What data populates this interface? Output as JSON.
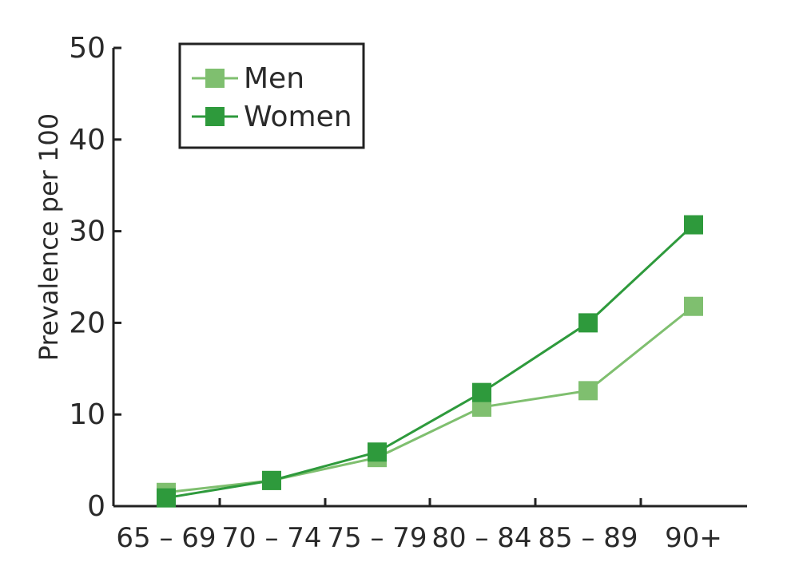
{
  "chart_data": {
    "type": "line",
    "title": "",
    "xlabel": "",
    "ylabel": "Prevalence per 100",
    "categories": [
      "65 – 69",
      "70 – 74",
      "75 – 79",
      "80 – 84",
      "85 – 89",
      "90+"
    ],
    "ylim": [
      0,
      50
    ],
    "yticks": [
      0,
      10,
      20,
      30,
      40,
      50
    ],
    "grid": false,
    "legend_position": "top-left",
    "series": [
      {
        "name": "Men",
        "color": "#7fbf6f",
        "values": [
          1.5,
          2.8,
          5.3,
          10.8,
          12.6,
          21.8
        ]
      },
      {
        "name": "Women",
        "color": "#2e9a3c",
        "values": [
          0.9,
          2.8,
          5.9,
          12.4,
          20.0,
          30.7
        ]
      }
    ]
  }
}
